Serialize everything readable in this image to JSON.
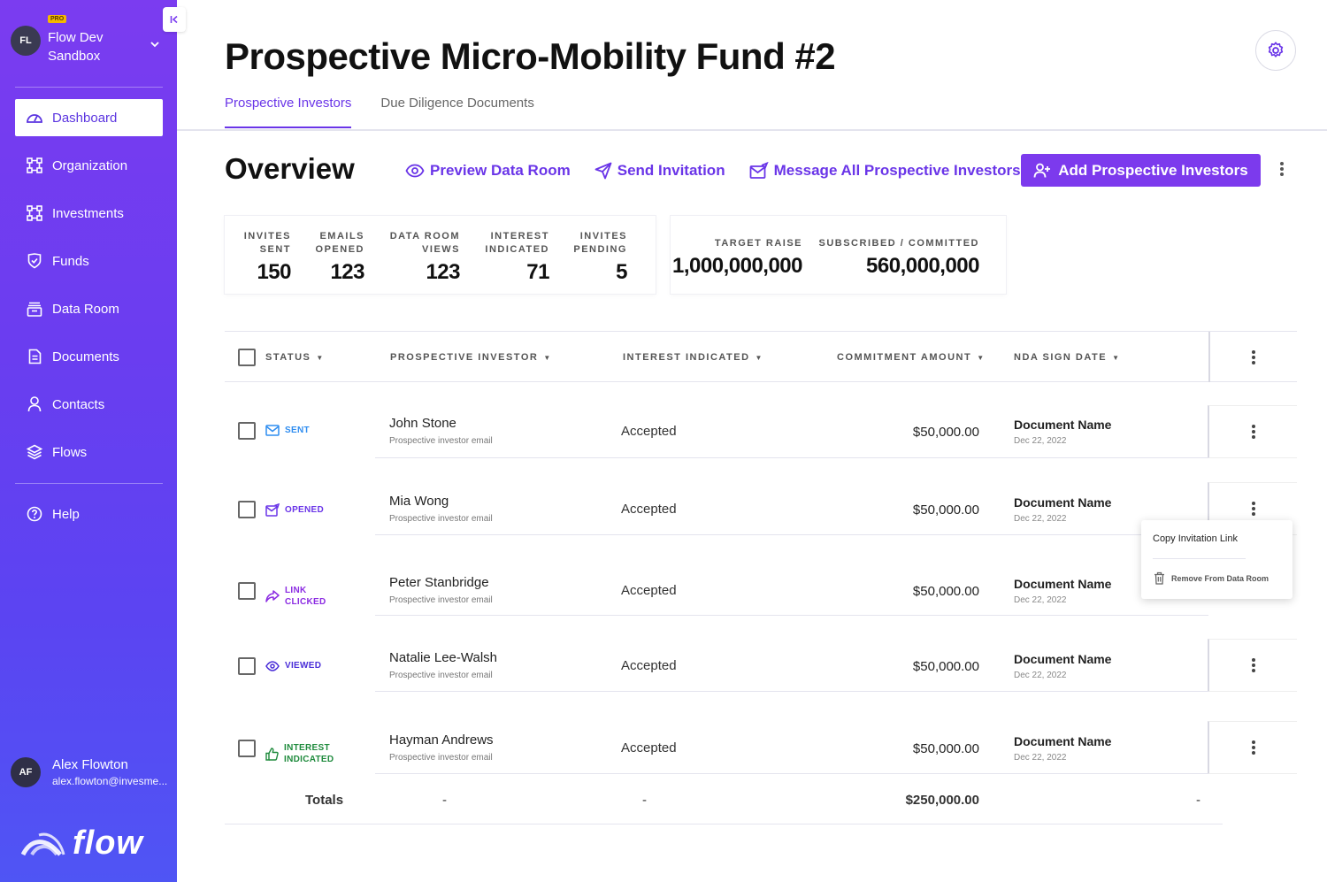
{
  "org": {
    "initials": "FL",
    "badge": "PRO",
    "name": "Flow Dev Sandbox"
  },
  "nav": {
    "items": [
      {
        "label": "Dashboard",
        "icon": "gauge-icon"
      },
      {
        "label": "Organization",
        "icon": "organization-icon"
      },
      {
        "label": "Investments",
        "icon": "investments-icon"
      },
      {
        "label": "Funds",
        "icon": "shield-icon"
      },
      {
        "label": "Data Room",
        "icon": "data-room-icon"
      },
      {
        "label": "Documents",
        "icon": "document-icon"
      },
      {
        "label": "Contacts",
        "icon": "person-icon"
      },
      {
        "label": "Flows",
        "icon": "layers-icon"
      }
    ],
    "help": "Help"
  },
  "user": {
    "initials": "AF",
    "name": "Alex Flowton",
    "email": "alex.flowton@invesme..."
  },
  "logo": {
    "text": "flow"
  },
  "page": {
    "title": "Prospective Micro-Mobility Fund #2"
  },
  "tabs": [
    "Prospective Investors",
    "Due Diligence Documents"
  ],
  "overview": {
    "title": "Overview",
    "actions": {
      "preview": "Preview Data Room",
      "send": "Send Invitation",
      "message": "Message All Prospective Investors",
      "add": "Add Prospective Investors"
    }
  },
  "stats": {
    "invites_sent": {
      "label1": "INVITES",
      "label2": "SENT",
      "value": "150"
    },
    "emails_opened": {
      "label1": "EMAILS",
      "label2": "OPENED",
      "value": "123"
    },
    "data_room_views": {
      "label1": "DATA ROOM",
      "label2": "VIEWS",
      "value": "123"
    },
    "interest_indicated": {
      "label1": "INTEREST",
      "label2": "INDICATED",
      "value": "71"
    },
    "invites_pending": {
      "label1": "INVITES",
      "label2": "PENDING",
      "value": "5"
    }
  },
  "raise": {
    "target": {
      "label": "TARGET RAISE",
      "value": "1,000,000,000"
    },
    "subscribed": {
      "label": "SUBSCRIBED / COMMITTED",
      "value": "560,000,000"
    }
  },
  "table": {
    "headers": {
      "status": "STATUS",
      "investor": "PROSPECTIVE INVESTOR",
      "interest": "INTEREST INDICATED",
      "commitment": "COMMITMENT AMOUNT",
      "nda": "NDA SIGN DATE"
    },
    "rows": [
      {
        "status1": "SENT",
        "status2": "",
        "status_color": "#2f8df0",
        "name": "John Stone",
        "email": "Prospective investor email",
        "interest": "Accepted",
        "amount": "$50,000.00",
        "doc": "Document Name",
        "date": "Dec 22, 2022"
      },
      {
        "status1": "OPENED",
        "status2": "",
        "status_color": "#6a35e8",
        "name": "Mia Wong",
        "email": "Prospective investor email",
        "interest": "Accepted",
        "amount": "$50,000.00",
        "doc": "Document Name",
        "date": "Dec 22, 2022"
      },
      {
        "status1": "LINK",
        "status2": "CLICKED",
        "status_color": "#8b2be2",
        "name": "Peter Stanbridge",
        "email": "Prospective investor email",
        "interest": "Accepted",
        "amount": "$50,000.00",
        "doc": "Document Name",
        "date": "Dec 22, 2022"
      },
      {
        "status1": "VIEWED",
        "status2": "",
        "status_color": "#4a2ed8",
        "name": "Natalie Lee-Walsh",
        "email": "Prospective investor email",
        "interest": "Accepted",
        "amount": "$50,000.00",
        "doc": "Document Name",
        "date": "Dec 22, 2022"
      },
      {
        "status1": "INTEREST",
        "status2": "INDICATED",
        "status_color": "#1e8a3c",
        "name": "Hayman Andrews",
        "email": "Prospective investor email",
        "interest": "Accepted",
        "amount": "$50,000.00",
        "doc": "Document Name",
        "date": "Dec 22, 2022"
      }
    ],
    "totals": {
      "label": "Totals",
      "investor": "-",
      "interest": "-",
      "amount": "$250,000.00",
      "nda": "-"
    }
  },
  "popup": {
    "copy": "Copy Invitation Link",
    "remove": "Remove From Data Room"
  },
  "colors": {
    "accent": "#7c3aed",
    "sidebar_top": "#7b3cf0",
    "sidebar_bottom": "#4f55f4"
  }
}
